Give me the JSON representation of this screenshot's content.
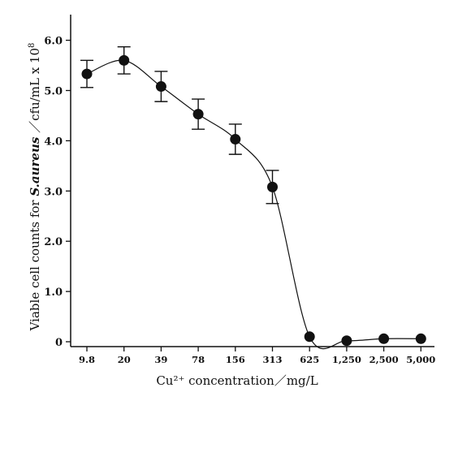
{
  "chart_data": {
    "type": "line",
    "title": "",
    "xlabel": "Cu²⁺ concentration／mg/L",
    "ylabel": {
      "prefix": "Viable cell counts for ",
      "italic": "S.aureus",
      "suffix": "  ／cfu/mL x 10",
      "exponent": "8"
    },
    "categories": [
      "9.8",
      "20",
      "39",
      "78",
      "156",
      "313",
      "625",
      "1,250",
      "2,500",
      "5,000"
    ],
    "ylim": [
      0,
      6.5
    ],
    "yticks": [
      0,
      1,
      2,
      3,
      4,
      5,
      6
    ],
    "ytick_labels": [
      "0",
      "1.0",
      "2.0",
      "3.0",
      "4.0",
      "5.0",
      "6.0"
    ],
    "grid": false,
    "series": [
      {
        "values": [
          5.33,
          5.6,
          5.08,
          4.53,
          4.03,
          3.08,
          0.1,
          0.02,
          0.06,
          0.06
        ],
        "errors": [
          0.27,
          0.27,
          0.3,
          0.3,
          0.3,
          0.33,
          0,
          0,
          0,
          0
        ]
      }
    ]
  }
}
